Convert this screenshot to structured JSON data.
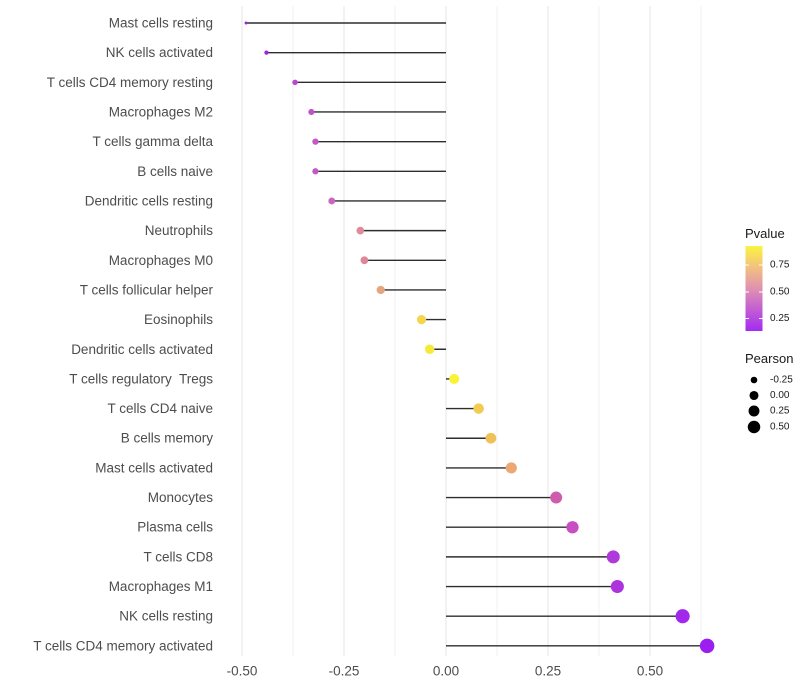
{
  "chart_data": {
    "type": "lollipop",
    "title": "",
    "xlabel": "",
    "ylabel": "",
    "x_axis": {
      "tick_values": [
        -0.5,
        -0.25,
        0,
        0.25,
        0.5
      ],
      "tick_labels": [
        "-0.50",
        "-0.25",
        "0.00",
        "0.25",
        "0.50"
      ],
      "minor_tick_values": [
        -0.375,
        -0.125,
        0.125,
        0.375,
        0.625
      ],
      "xlim": [
        -0.554,
        0.686
      ],
      "grid": "vertical-only"
    },
    "baseline_value": 0,
    "points": [
      {
        "label": "Mast cells resting",
        "pearson": -0.49,
        "color": "#9329E2"
      },
      {
        "label": "NK cells activated",
        "pearson": -0.44,
        "color": "#9C24E4"
      },
      {
        "label": "T cells CD4 memory resting",
        "pearson": -0.37,
        "color": "#BC48CF"
      },
      {
        "label": "Macrophages M2",
        "pearson": -0.33,
        "color": "#C153C9"
      },
      {
        "label": "T cells gamma delta",
        "pearson": -0.32,
        "color": "#C458C6"
      },
      {
        "label": "B cells naive",
        "pearson": -0.32,
        "color": "#C458C6"
      },
      {
        "label": "Dendritic cells resting",
        "pearson": -0.28,
        "color": "#CB66BE"
      },
      {
        "label": "Neutrophils",
        "pearson": -0.21,
        "color": "#DE8A9B"
      },
      {
        "label": "Macrophages M0",
        "pearson": -0.2,
        "color": "#DD8799"
      },
      {
        "label": "T cells follicular helper",
        "pearson": -0.16,
        "color": "#E5A57E"
      },
      {
        "label": "Eosinophils",
        "pearson": -0.06,
        "color": "#F2D74E"
      },
      {
        "label": "Dendritic cells activated",
        "pearson": -0.04,
        "color": "#F6E93C"
      },
      {
        "label": "T cells regulatory  Tregs",
        "pearson": 0.02,
        "color": "#FAF235"
      },
      {
        "label": "T cells CD4 naive",
        "pearson": 0.08,
        "color": "#F2CC50"
      },
      {
        "label": "B cells memory",
        "pearson": 0.11,
        "color": "#F0C158"
      },
      {
        "label": "Mast cells activated",
        "pearson": 0.16,
        "color": "#EBA875"
      },
      {
        "label": "Monocytes",
        "pearson": 0.27,
        "color": "#CE5CAC"
      },
      {
        "label": "Plasma cells",
        "pearson": 0.31,
        "color": "#C74FC2"
      },
      {
        "label": "T cells CD8",
        "pearson": 0.41,
        "color": "#AF39DA"
      },
      {
        "label": "Macrophages M1",
        "pearson": 0.42,
        "color": "#AD34DD"
      },
      {
        "label": "NK cells resting",
        "pearson": 0.58,
        "color": "#A228EC"
      },
      {
        "label": "T cells CD4 memory activated",
        "pearson": 0.64,
        "color": "#9C1DF0"
      }
    ],
    "legend": {
      "pvalue": {
        "title": "Pvalue",
        "tick_labels": [
          "0.75",
          "0.50",
          "0.25"
        ],
        "tick_values": [
          0.75,
          0.5,
          0.25
        ],
        "gradient_top_to_bottom": [
          "#FAF43F",
          "#F2C17F",
          "#E091B1",
          "#C25DD3",
          "#A32BF2"
        ]
      },
      "pearson": {
        "title": "Pearson",
        "tick_labels": [
          "-0.25",
          "0.00",
          "0.25",
          "0.50"
        ],
        "tick_values": [
          -0.25,
          0,
          0.25,
          0.5
        ],
        "dot_color": "#000000"
      }
    },
    "colors": {
      "stem": "#2E2E2E",
      "grid_major": "#E4E4E4",
      "grid_minor": "#F1F1F1",
      "axis_text": "#4D4D4D",
      "legend_text": "#1A1A1A",
      "background": "#FFFFFF"
    }
  }
}
